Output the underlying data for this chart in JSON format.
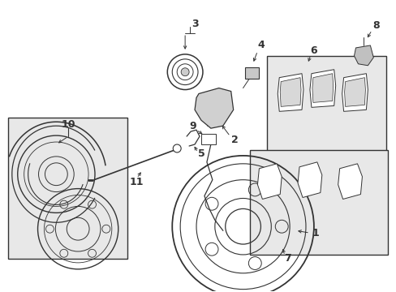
{
  "bg_color": "#ffffff",
  "line_color": "#333333",
  "box_bg": "#e8e8e8",
  "fig_width": 4.89,
  "fig_height": 3.6,
  "dpi": 100
}
